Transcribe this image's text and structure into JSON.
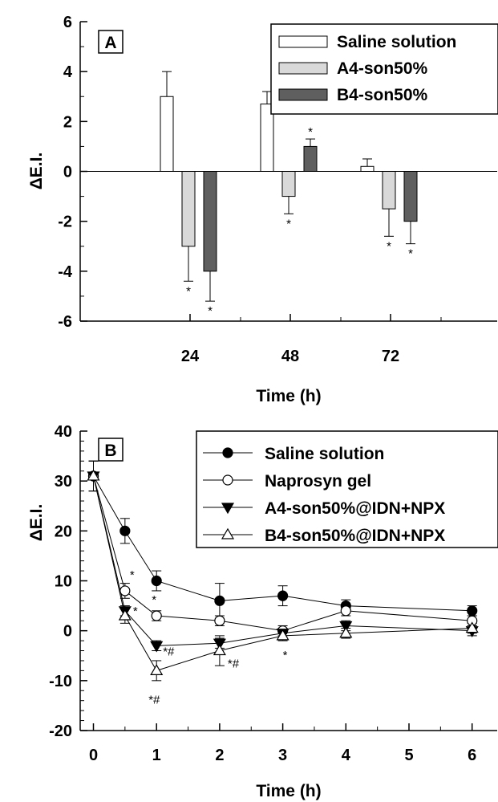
{
  "chart_data": [
    {
      "type": "bar",
      "panel_label": "A",
      "xlabel": "Time (h)",
      "ylabel": "ΔE.I.",
      "categories": [
        "24",
        "48",
        "72"
      ],
      "ylim": [
        -6,
        6
      ],
      "yticks": [
        "-6",
        "-4",
        "-2",
        "0",
        "2",
        "4",
        "6"
      ],
      "legend_position": "top-right",
      "series": [
        {
          "name": "Saline solution",
          "values": [
            3.0,
            2.7,
            0.2
          ],
          "errors": [
            1.0,
            0.5,
            0.3
          ],
          "color": "#ffffff"
        },
        {
          "name": "A4-son50%",
          "values": [
            -3.0,
            -1.0,
            -1.5
          ],
          "errors": [
            1.4,
            0.7,
            1.1
          ],
          "color": "#d9d9d9"
        },
        {
          "name": "B4-son50%",
          "values": [
            -4.0,
            1.0,
            -2.0
          ],
          "errors": [
            1.2,
            0.3,
            0.9
          ],
          "color": "#5f5f5f"
        }
      ],
      "annotations": [
        {
          "category": "24",
          "series": 1,
          "text": "*"
        },
        {
          "category": "24",
          "series": 2,
          "text": "*"
        },
        {
          "category": "48",
          "series": 1,
          "text": "*"
        },
        {
          "category": "48",
          "series": 2,
          "text": "*"
        },
        {
          "category": "72",
          "series": 1,
          "text": "*"
        },
        {
          "category": "72",
          "series": 2,
          "text": "*"
        }
      ]
    },
    {
      "type": "line",
      "panel_label": "B",
      "xlabel": "Time (h)",
      "ylabel": "ΔE.I.",
      "x": [
        0,
        0.5,
        1,
        2,
        3,
        4,
        6
      ],
      "xlim": [
        -0.2,
        6.5
      ],
      "ylim": [
        -20,
        40
      ],
      "xticks": [
        "0",
        "1",
        "2",
        "3",
        "4",
        "5",
        "6"
      ],
      "yticks": [
        "-20",
        "-10",
        "0",
        "10",
        "20",
        "30",
        "40"
      ],
      "legend_position": "top-right",
      "series": [
        {
          "name": "Saline solution",
          "marker": "circle-filled",
          "values": [
            31,
            20,
            10,
            6,
            7,
            5,
            4
          ],
          "errors": [
            3,
            2.5,
            2,
            3.5,
            2,
            1.2,
            1
          ]
        },
        {
          "name": "Naprosyn gel",
          "marker": "circle-open",
          "values": [
            31,
            8,
            3,
            2,
            0,
            4,
            2
          ],
          "errors": [
            3,
            1.5,
            1,
            1,
            1,
            1,
            1
          ]
        },
        {
          "name": "A4-son50%@IDN+NPX",
          "marker": "triangle-down-filled",
          "values": [
            31,
            4,
            -3,
            -2.5,
            -0.5,
            1,
            0
          ],
          "errors": [
            3,
            1,
            1,
            1,
            1,
            1,
            1
          ]
        },
        {
          "name": "B4-son50%@IDN+NPX",
          "marker": "triangle-up-open",
          "values": [
            31,
            3,
            -8,
            -4,
            -1,
            -0.5,
            0.5
          ],
          "errors": [
            3,
            1.5,
            2,
            3,
            1,
            1,
            1
          ]
        }
      ],
      "annotations": [
        {
          "x": 0.5,
          "y": 8,
          "text": "*"
        },
        {
          "x": 0.5,
          "y": 4,
          "text": "*"
        },
        {
          "x": 1,
          "y": 3,
          "text": "*"
        },
        {
          "x": 1,
          "y": -3,
          "text": "*#"
        },
        {
          "x": 1,
          "y": -8,
          "text": "*#"
        },
        {
          "x": 2,
          "y": -4,
          "text": "*#"
        },
        {
          "x": 3,
          "y": -1,
          "text": "*"
        }
      ]
    }
  ]
}
